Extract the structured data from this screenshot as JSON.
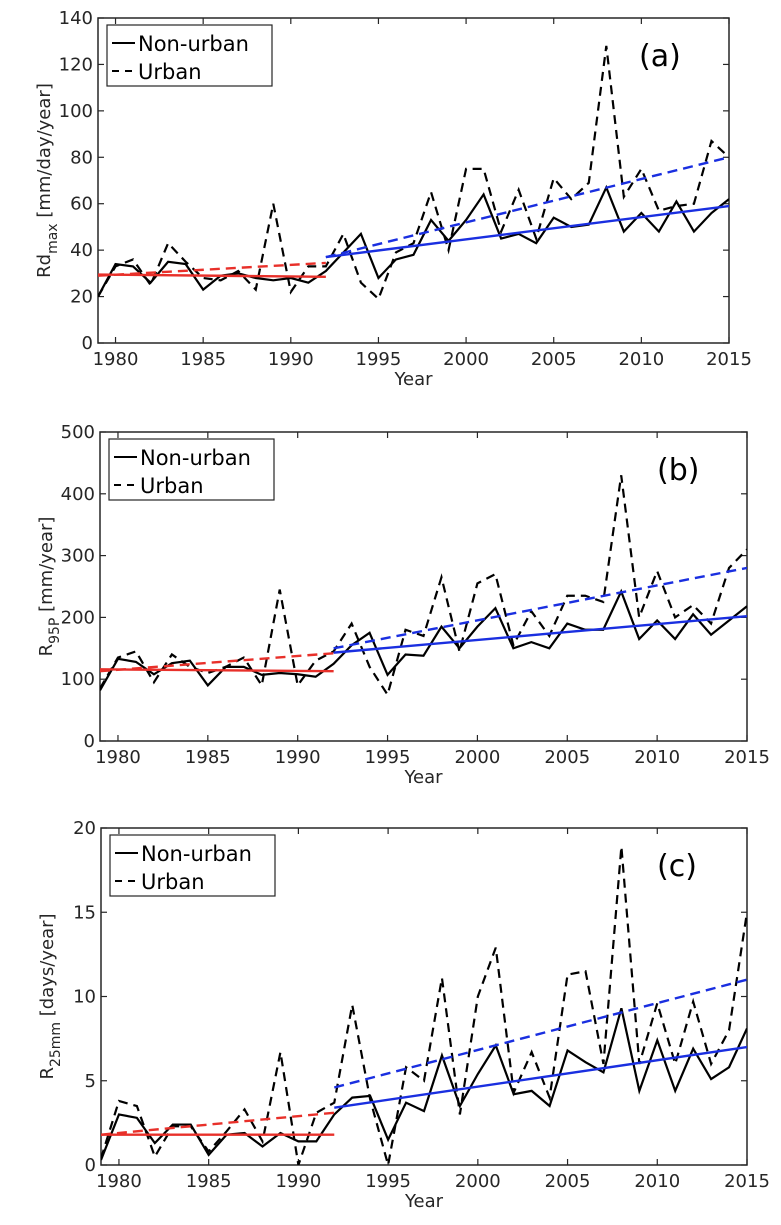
{
  "chart_data": [
    {
      "type": "line",
      "panel_label": "(a)",
      "title": "",
      "xlabel": "Year",
      "ylabel_main": "Rd",
      "ylabel_sub": "max",
      "ylabel_rest": " [mm/day/year]",
      "xlim": [
        1979,
        2015
      ],
      "ylim": [
        0,
        140
      ],
      "xticks": [
        1980,
        1985,
        1990,
        1995,
        2000,
        2005,
        2010,
        2015
      ],
      "yticks": [
        0,
        20,
        40,
        60,
        80,
        100,
        120,
        140
      ],
      "grid": false,
      "legend": {
        "position": "top-left",
        "entries": [
          "Non-urban",
          "Urban"
        ]
      },
      "x": [
        1979,
        1980,
        1981,
        1982,
        1983,
        1984,
        1985,
        1986,
        1987,
        1988,
        1989,
        1990,
        1991,
        1992,
        1993,
        1994,
        1995,
        1996,
        1997,
        1998,
        1999,
        2000,
        2001,
        2002,
        2003,
        2004,
        2005,
        2006,
        2007,
        2008,
        2009,
        2010,
        2011,
        2012,
        2013,
        2014,
        2015
      ],
      "series": [
        {
          "name": "Non-urban",
          "style": "solid",
          "color": "#000000",
          "values": [
            20,
            34,
            33,
            26,
            35,
            34,
            23,
            29,
            30,
            28,
            27,
            28,
            26,
            31,
            39,
            47,
            28,
            36,
            38,
            53,
            44,
            53,
            64,
            45,
            47,
            43,
            54,
            50,
            51,
            67,
            48,
            56,
            48,
            61,
            48,
            56,
            62
          ]
        },
        {
          "name": "Urban",
          "style": "dashed",
          "color": "#000000",
          "values": [
            20,
            33,
            36,
            25,
            43,
            35,
            28,
            27,
            31,
            23,
            60,
            22,
            33,
            33,
            47,
            26,
            19,
            39,
            43,
            65,
            40,
            75,
            75,
            48,
            66,
            45,
            71,
            62,
            69,
            128,
            63,
            75,
            57,
            59,
            60,
            87,
            80
          ]
        }
      ],
      "trend_lines": [
        {
          "name": "Non-urban trend 1979-1992",
          "style": "solid",
          "color": "#e8302a",
          "x": [
            1979,
            1992
          ],
          "y": [
            29.5,
            28.5
          ]
        },
        {
          "name": "Urban trend 1979-1992",
          "style": "dashed",
          "color": "#e8302a",
          "x": [
            1979,
            1992
          ],
          "y": [
            29,
            34.5
          ]
        },
        {
          "name": "Non-urban trend 1992-2015",
          "style": "solid",
          "color": "#1a2fe0",
          "x": [
            1992,
            2015
          ],
          "y": [
            37,
            59
          ]
        },
        {
          "name": "Urban trend 1992-2015",
          "style": "dashed",
          "color": "#1a2fe0",
          "x": [
            1992,
            2015
          ],
          "y": [
            37,
            80
          ]
        }
      ]
    },
    {
      "type": "line",
      "panel_label": "(b)",
      "title": "",
      "xlabel": "Year",
      "ylabel_main": "R",
      "ylabel_sub": "95P",
      "ylabel_rest": " [mm/year]",
      "xlim": [
        1979,
        2015
      ],
      "ylim": [
        0,
        500
      ],
      "xticks": [
        1980,
        1985,
        1990,
        1995,
        2000,
        2005,
        2010,
        2015
      ],
      "yticks": [
        0,
        100,
        200,
        300,
        400,
        500
      ],
      "grid": false,
      "legend": {
        "position": "top-left",
        "entries": [
          "Non-urban",
          "Urban"
        ]
      },
      "x": [
        1979,
        1980,
        1981,
        1982,
        1983,
        1984,
        1985,
        1986,
        1987,
        1988,
        1989,
        1990,
        1991,
        1992,
        1993,
        1994,
        1995,
        1996,
        1997,
        1998,
        1999,
        2000,
        2001,
        2002,
        2003,
        2004,
        2005,
        2006,
        2007,
        2008,
        2009,
        2010,
        2011,
        2012,
        2013,
        2014,
        2015
      ],
      "series": [
        {
          "name": "Non-urban",
          "style": "solid",
          "color": "#000000",
          "values": [
            82,
            133,
            128,
            108,
            126,
            130,
            90,
            120,
            120,
            107,
            110,
            108,
            104,
            125,
            155,
            175,
            107,
            140,
            138,
            185,
            150,
            185,
            215,
            150,
            160,
            150,
            190,
            180,
            180,
            242,
            165,
            195,
            165,
            205,
            172,
            195,
            218
          ]
        },
        {
          "name": "Urban",
          "style": "dashed",
          "color": "#000000",
          "values": [
            85,
            135,
            145,
            95,
            140,
            120,
            110,
            120,
            135,
            90,
            245,
            90,
            130,
            145,
            190,
            120,
            75,
            180,
            170,
            265,
            145,
            255,
            270,
            155,
            210,
            170,
            235,
            235,
            225,
            430,
            200,
            275,
            200,
            220,
            190,
            280,
            310
          ]
        }
      ],
      "trend_lines": [
        {
          "name": "Non-urban trend 1979-1992",
          "style": "solid",
          "color": "#e8302a",
          "x": [
            1979,
            1992
          ],
          "y": [
            116,
            113
          ]
        },
        {
          "name": "Urban trend 1979-1992",
          "style": "dashed",
          "color": "#e8302a",
          "x": [
            1979,
            1992
          ],
          "y": [
            113,
            142
          ]
        },
        {
          "name": "Non-urban trend 1992-2015",
          "style": "solid",
          "color": "#1a2fe0",
          "x": [
            1992,
            2015
          ],
          "y": [
            143,
            202
          ]
        },
        {
          "name": "Urban trend 1992-2015",
          "style": "dashed",
          "color": "#1a2fe0",
          "x": [
            1992,
            2015
          ],
          "y": [
            150,
            280
          ]
        }
      ]
    },
    {
      "type": "line",
      "panel_label": "(c)",
      "title": "",
      "xlabel": "Year",
      "ylabel_main": "R",
      "ylabel_sub": "25mm",
      "ylabel_rest": " [days/year]",
      "xlim": [
        1979,
        2015
      ],
      "ylim": [
        0,
        20
      ],
      "xticks": [
        1980,
        1985,
        1990,
        1995,
        2000,
        2005,
        2010,
        2015
      ],
      "yticks": [
        0,
        5,
        10,
        15,
        20
      ],
      "grid": false,
      "legend": {
        "position": "top-left",
        "entries": [
          "Non-urban",
          "Urban"
        ]
      },
      "x": [
        1979,
        1980,
        1981,
        1982,
        1983,
        1984,
        1985,
        1986,
        1987,
        1988,
        1989,
        1990,
        1991,
        1992,
        1993,
        1994,
        1995,
        1996,
        1997,
        1998,
        1999,
        2000,
        2001,
        2002,
        2003,
        2004,
        2005,
        2006,
        2007,
        2008,
        2009,
        2010,
        2011,
        2012,
        2013,
        2014,
        2015
      ],
      "series": [
        {
          "name": "Non-urban",
          "style": "solid",
          "color": "#000000",
          "values": [
            0.3,
            3.0,
            2.8,
            1.3,
            2.4,
            2.4,
            0.6,
            1.8,
            1.9,
            1.1,
            1.9,
            1.4,
            1.4,
            3.0,
            4.0,
            4.1,
            1.5,
            3.7,
            3.2,
            6.5,
            3.5,
            5.4,
            7.1,
            4.2,
            4.4,
            3.5,
            6.8,
            6.1,
            5.5,
            9.3,
            4.4,
            7.4,
            4.4,
            6.9,
            5.1,
            5.8,
            8.1
          ]
        },
        {
          "name": "Urban",
          "style": "dashed",
          "color": "#000000",
          "values": [
            0.4,
            3.8,
            3.5,
            0.5,
            2.3,
            2.3,
            0.8,
            2.0,
            3.3,
            1.4,
            6.7,
            0.0,
            3.1,
            3.7,
            9.5,
            3.9,
            0.0,
            5.8,
            5.0,
            11.1,
            3.0,
            10.0,
            12.9,
            4.3,
            6.7,
            4.0,
            11.3,
            11.5,
            6.0,
            18.9,
            6.0,
            9.6,
            6.0,
            9.7,
            6.0,
            8.0,
            15.0
          ]
        }
      ],
      "trend_lines": [
        {
          "name": "Non-urban trend 1979-1992",
          "style": "solid",
          "color": "#e8302a",
          "x": [
            1979,
            1992
          ],
          "y": [
            1.8,
            1.8
          ]
        },
        {
          "name": "Urban trend 1979-1992",
          "style": "dashed",
          "color": "#e8302a",
          "x": [
            1979,
            1992
          ],
          "y": [
            1.8,
            3.1
          ]
        },
        {
          "name": "Non-urban trend 1992-2015",
          "style": "solid",
          "color": "#1a2fe0",
          "x": [
            1992,
            2015
          ],
          "y": [
            3.4,
            7.0
          ]
        },
        {
          "name": "Urban trend 1992-2015",
          "style": "dashed",
          "color": "#1a2fe0",
          "x": [
            1992,
            2015
          ],
          "y": [
            4.6,
            11.0
          ]
        }
      ]
    }
  ]
}
